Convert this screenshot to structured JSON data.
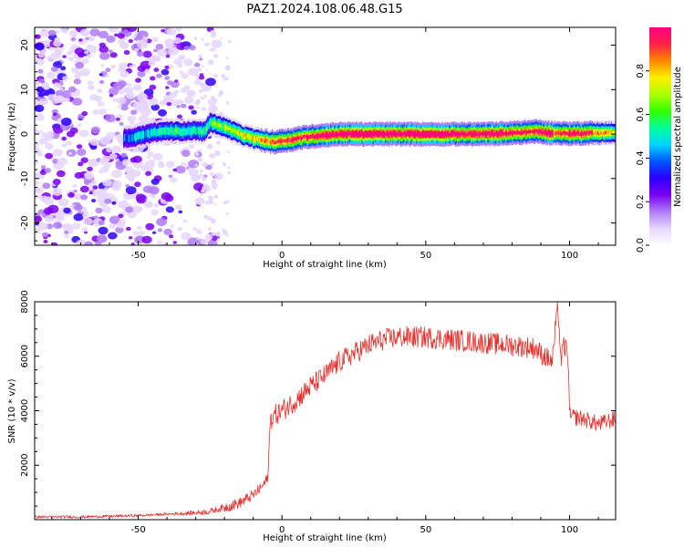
{
  "figure": {
    "title": "PAZ1.2024.108.06.48.G15"
  },
  "chart_data": [
    {
      "type": "heatmap",
      "title": "",
      "xlabel": "Height of straight line (km)",
      "ylabel": "Frequency (Hz)",
      "xlim": [
        -86,
        116
      ],
      "ylim": [
        -25,
        24
      ],
      "x_ticks": [
        -50,
        0,
        50,
        100
      ],
      "x_tick_labels": [
        "-50",
        "0",
        "50",
        "100"
      ],
      "y_ticks": [
        -20,
        -10,
        0,
        10,
        20
      ],
      "y_tick_labels": [
        "-20",
        "-10",
        "0",
        "10",
        "20"
      ],
      "colorbar": {
        "label": "Normalized spectral amplitude",
        "range": [
          0,
          1
        ],
        "ticks": [
          0.0,
          0.2,
          0.4,
          0.6,
          0.8
        ],
        "tick_labels": [
          "0.0",
          "0.2",
          "0.4",
          "0.6",
          "0.8"
        ],
        "colormap": [
          "#ffffff",
          "#e6d6ff",
          "#b07cf5",
          "#7a00f0",
          "#2b00ff",
          "#0055ff",
          "#00d5ff",
          "#00ff99",
          "#33ff00",
          "#aaff00",
          "#ffee00",
          "#ff8800",
          "#ff2244",
          "#ff0088"
        ]
      },
      "ridge": {
        "x": [
          -55,
          -50,
          -45,
          -40,
          -35,
          -30,
          -27,
          -25,
          -22,
          -18,
          -14,
          -10,
          -6,
          -3,
          0,
          3,
          7,
          12,
          20,
          30,
          40,
          50,
          60,
          70,
          80,
          88,
          92,
          96,
          100,
          105,
          110,
          116
        ],
        "frequency": [
          -1,
          -0.5,
          0.3,
          0.7,
          0.6,
          0.8,
          0.5,
          2.6,
          2,
          1,
          -0.2,
          -1,
          -1.5,
          -1.8,
          -1.5,
          -1.3,
          -0.8,
          -0.4,
          0,
          0,
          0,
          0,
          0,
          0,
          0.2,
          0.6,
          0.3,
          0.2,
          0.1,
          0.2,
          0.3,
          0.2
        ],
        "amplitude": [
          0.3,
          0.45,
          0.45,
          0.5,
          0.5,
          0.45,
          0.5,
          0.55,
          0.6,
          0.6,
          0.65,
          0.7,
          0.75,
          0.8,
          0.85,
          0.85,
          0.85,
          0.9,
          0.95,
          1.0,
          0.95,
          1.0,
          0.95,
          0.9,
          0.9,
          0.85,
          0.95,
          0.8,
          0.9,
          0.85,
          0.75,
          0.7
        ]
      },
      "noise_region": {
        "x_range": [
          -86,
          -22
        ],
        "y_range": [
          -25,
          24
        ],
        "amplitude_range": [
          0.05,
          0.3
        ]
      }
    },
    {
      "type": "line",
      "title": "",
      "xlabel": "Height of straight line (km)",
      "ylabel": "SNR (10 * v/v)",
      "xlim": [
        -86,
        116
      ],
      "ylim": [
        0,
        8000
      ],
      "x_ticks": [
        -50,
        0,
        50,
        100
      ],
      "x_tick_labels": [
        "-50",
        "0",
        "50",
        "100"
      ],
      "y_ticks": [
        2000,
        4000,
        6000,
        8000
      ],
      "y_tick_labels": [
        "2000",
        "4000",
        "6000",
        "8000"
      ],
      "series": [
        {
          "color": "#e8302d",
          "x": [
            -86,
            -70,
            -50,
            -40,
            -30,
            -25,
            -20,
            -15,
            -10,
            -7,
            -5,
            -4,
            -3,
            0,
            5,
            10,
            15,
            20,
            25,
            30,
            35,
            40,
            50,
            60,
            70,
            80,
            88,
            90,
            94,
            95,
            96,
            97,
            98,
            99,
            99.5,
            100,
            105,
            110,
            116
          ],
          "y": [
            100,
            100,
            150,
            200,
            250,
            300,
            450,
            600,
            900,
            1200,
            1500,
            3700,
            3800,
            4000,
            4400,
            4900,
            5300,
            5800,
            6100,
            6400,
            6600,
            6700,
            6700,
            6600,
            6500,
            6400,
            6300,
            6100,
            5800,
            6900,
            7800,
            5800,
            6400,
            6200,
            6000,
            3800,
            3700,
            3500,
            3700
          ]
        }
      ]
    }
  ]
}
